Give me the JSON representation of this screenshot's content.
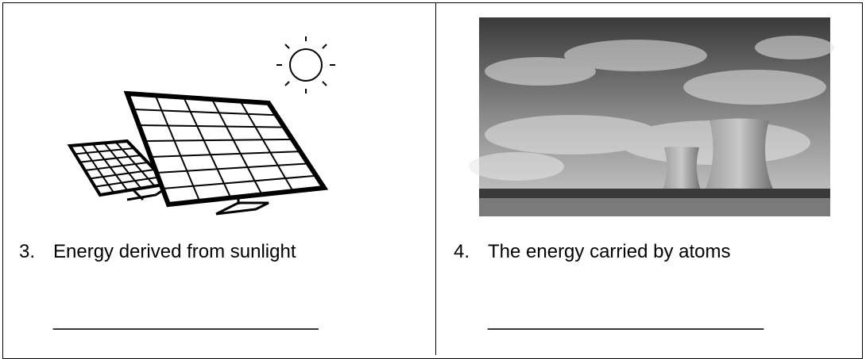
{
  "cells": [
    {
      "number": "3.",
      "text": "Energy derived from sunlight",
      "blank": "_________________________"
    },
    {
      "number": "4.",
      "text": "The energy carried by atoms",
      "blank": "__________________________"
    }
  ]
}
